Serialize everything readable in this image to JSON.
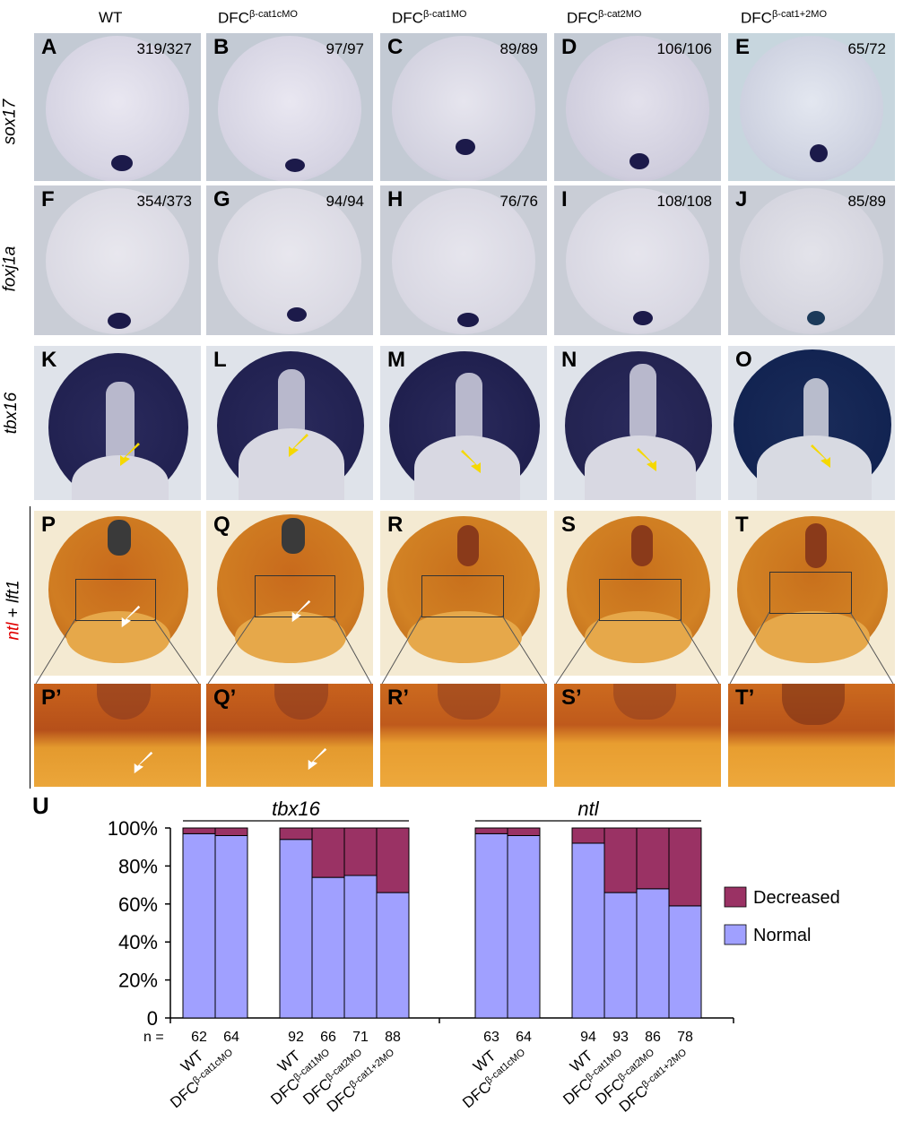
{
  "headers": [
    {
      "base": "WT",
      "sup": ""
    },
    {
      "base": "DFC",
      "sup": "β-cat1cMO"
    },
    {
      "base": "DFC",
      "sup": "β-cat1MO"
    },
    {
      "base": "DFC",
      "sup": "β-cat2MO"
    },
    {
      "base": "DFC",
      "sup": "β-cat1+2MO"
    }
  ],
  "row_labels": {
    "r1": "sox17",
    "r2": "foxj1a",
    "r3": "tbx16",
    "r4_red": "ntl",
    "r4_plus": " + ",
    "r4_black": "lft1"
  },
  "panels": {
    "row1": [
      {
        "label": "A",
        "count": "319/327"
      },
      {
        "label": "B",
        "count": "97/97"
      },
      {
        "label": "C",
        "count": "89/89"
      },
      {
        "label": "D",
        "count": "106/106"
      },
      {
        "label": "E",
        "count": "65/72"
      }
    ],
    "row2": [
      {
        "label": "F",
        "count": "354/373"
      },
      {
        "label": "G",
        "count": "94/94"
      },
      {
        "label": "H",
        "count": "76/76"
      },
      {
        "label": "I",
        "count": "108/108"
      },
      {
        "label": "J",
        "count": "85/89"
      }
    ],
    "row3": [
      {
        "label": "K"
      },
      {
        "label": "L"
      },
      {
        "label": "M"
      },
      {
        "label": "N"
      },
      {
        "label": "O"
      }
    ],
    "row4": [
      {
        "label": "P"
      },
      {
        "label": "Q"
      },
      {
        "label": "R"
      },
      {
        "label": "S"
      },
      {
        "label": "T"
      }
    ],
    "row5": [
      {
        "label": "P’"
      },
      {
        "label": "Q’"
      },
      {
        "label": "R’"
      },
      {
        "label": "S’"
      },
      {
        "label": "T’"
      }
    ]
  },
  "colors": {
    "decreased": "#9a3264",
    "normal": "#a0a0ff",
    "arrow_yellow": "#f5d800",
    "ntl_red": "#e00000"
  },
  "chart_data": {
    "type": "bar",
    "panel_label": "U",
    "stacked": true,
    "ylabels": [
      "100%",
      "80%",
      "60%",
      "40%",
      "20%",
      "0"
    ],
    "ylim": [
      0,
      100
    ],
    "n_label": "n =",
    "groups": [
      {
        "title": "tbx16",
        "bars": [
          {
            "category": "WT",
            "sup": "",
            "n": "62",
            "normal": 97,
            "decreased": 3
          },
          {
            "category": "DFC",
            "sup": "β-cat1cMO",
            "n": "64",
            "normal": 96,
            "decreased": 4
          },
          {
            "category": "WT",
            "sup": "",
            "n": "92",
            "normal": 94,
            "decreased": 6
          },
          {
            "category": "DFC",
            "sup": "β-cat1MO",
            "n": "66",
            "normal": 74,
            "decreased": 26
          },
          {
            "category": "DFC",
            "sup": "β-cat2MO",
            "n": "71",
            "normal": 75,
            "decreased": 25
          },
          {
            "category": "DFC",
            "sup": "β-cat1+2MO",
            "n": "88",
            "normal": 66,
            "decreased": 34
          }
        ]
      },
      {
        "title": "ntl",
        "bars": [
          {
            "category": "WT",
            "sup": "",
            "n": "63",
            "normal": 97,
            "decreased": 3
          },
          {
            "category": "DFC",
            "sup": "β-cat1cMO",
            "n": "64",
            "normal": 96,
            "decreased": 4
          },
          {
            "category": "WT",
            "sup": "",
            "n": "94",
            "normal": 92,
            "decreased": 8
          },
          {
            "category": "DFC",
            "sup": "β-cat1MO",
            "n": "93",
            "normal": 66,
            "decreased": 34
          },
          {
            "category": "DFC",
            "sup": "β-cat2MO",
            "n": "86",
            "normal": 68,
            "decreased": 32
          },
          {
            "category": "DFC",
            "sup": "β-cat1+2MO",
            "n": "78",
            "normal": 59,
            "decreased": 41
          }
        ]
      }
    ],
    "legend": [
      {
        "name": "Decreased"
      },
      {
        "name": "Normal"
      }
    ]
  }
}
